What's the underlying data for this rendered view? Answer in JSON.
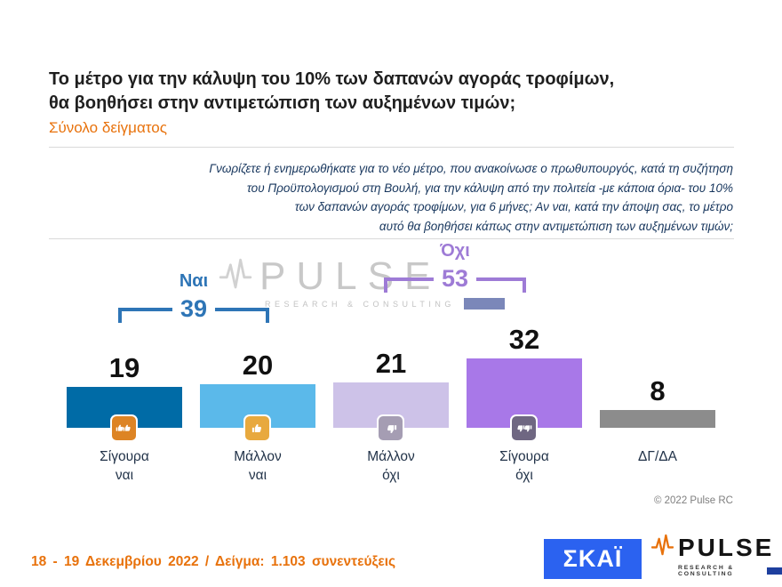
{
  "header": {
    "title_line1": "Το μέτρο για την κάλυψη του 10% των δαπανών αγοράς τροφίμων,",
    "title_line2": "θα βοηθήσει στην αντιμετώπιση των αυξημένων τιμών;",
    "subtitle": "Σύνολο δείγματος"
  },
  "question": {
    "lines": [
      "Γνωρίζετε ή ενημερωθήκατε για το νέο μέτρο, που ανακοίνωσε ο πρωθυπουργός, κατά τη συζήτηση",
      "του Προϋπολογισμού στη Βουλή, για την κάλυψη από την πολιτεία -με κάποια όρια- του 10%",
      "των δαπανών αγοράς τροφίμων, για 6 μήνες; Αν ναι, κατά την άποψη σας, το μέτρο",
      "αυτό θα βοηθήσει κάπως στην αντιμετώπιση των αυξημένων τιμών;"
    ]
  },
  "chart_data": {
    "type": "bar",
    "title": "Το μέτρο για την κάλυψη του 10% των δαπανών αγοράς τροφίμων, θα βοηθήσει στην αντιμετώπιση των αυξημένων τιμών;",
    "subtitle": "Σύνολο δείγματος",
    "categories": [
      "Σίγουρα ναι",
      "Μάλλον ναι",
      "Μάλλον όχι",
      "Σίγουρα όχι",
      "ΔΓ/ΔΑ"
    ],
    "values": [
      19,
      20,
      21,
      32,
      8
    ],
    "unit": "percent",
    "ylim": [
      0,
      35
    ],
    "grid": false,
    "legend": "none",
    "bar_colors": [
      "#006BA6",
      "#5BB9EA",
      "#CDC2E8",
      "#A878E8",
      "#8C8C8C"
    ],
    "groups": [
      {
        "label": "Ναι",
        "value": 39,
        "color": "#2E75B6",
        "bars": [
          "Σίγουρα ναι",
          "Μάλλον ναι"
        ]
      },
      {
        "label": "Όχι",
        "value": 53,
        "color": "#9E7BD6",
        "bars": [
          "Μάλλον όχι",
          "Σίγουρα όχι"
        ]
      }
    ]
  },
  "bars": [
    {
      "label_line1": "Σίγουρα",
      "label_line2": "ναι",
      "icon": "thumbs-up-double",
      "icon_bg": "#DD8424"
    },
    {
      "label_line1": "Μάλλον",
      "label_line2": "ναι",
      "icon": "thumbs-up",
      "icon_bg": "#E8A93E"
    },
    {
      "label_line1": "Μάλλον",
      "label_line2": "όχι",
      "icon": "thumbs-down",
      "icon_bg": "#A59DB3"
    },
    {
      "label_line1": "Σίγουρα",
      "label_line2": "όχι",
      "icon": "thumbs-down-double",
      "icon_bg": "#6F6782"
    },
    {
      "label_line1": "ΔΓ/ΔΑ",
      "label_line2": "",
      "icon": "",
      "icon_bg": ""
    }
  ],
  "annotations": {
    "yes": {
      "label": "Ναι",
      "value": 39,
      "color": "#2E75B6"
    },
    "no": {
      "label": "Όχι",
      "value": 53,
      "color": "#9E7BD6"
    }
  },
  "watermark": {
    "text": "PULSE",
    "sub": "RESEARCH & CONSULTING"
  },
  "footer": {
    "left_text": "18 - 19 Δεκεμβρίου 2022 / Δείγμα: 1.103 συνεντεύξεις",
    "copyright": "© 2022 Pulse RC"
  },
  "logos": {
    "skai": {
      "text": "ΣΚΑΪ",
      "bg": "#2B62F0"
    },
    "pulse": {
      "text": "PULSE",
      "sub": "RESEARCH & CONSULTING",
      "accent": "#E8720C"
    }
  },
  "colors": {
    "title": "#1F1F1F",
    "accent_orange": "#E8720C",
    "question_navy": "#17365D"
  }
}
